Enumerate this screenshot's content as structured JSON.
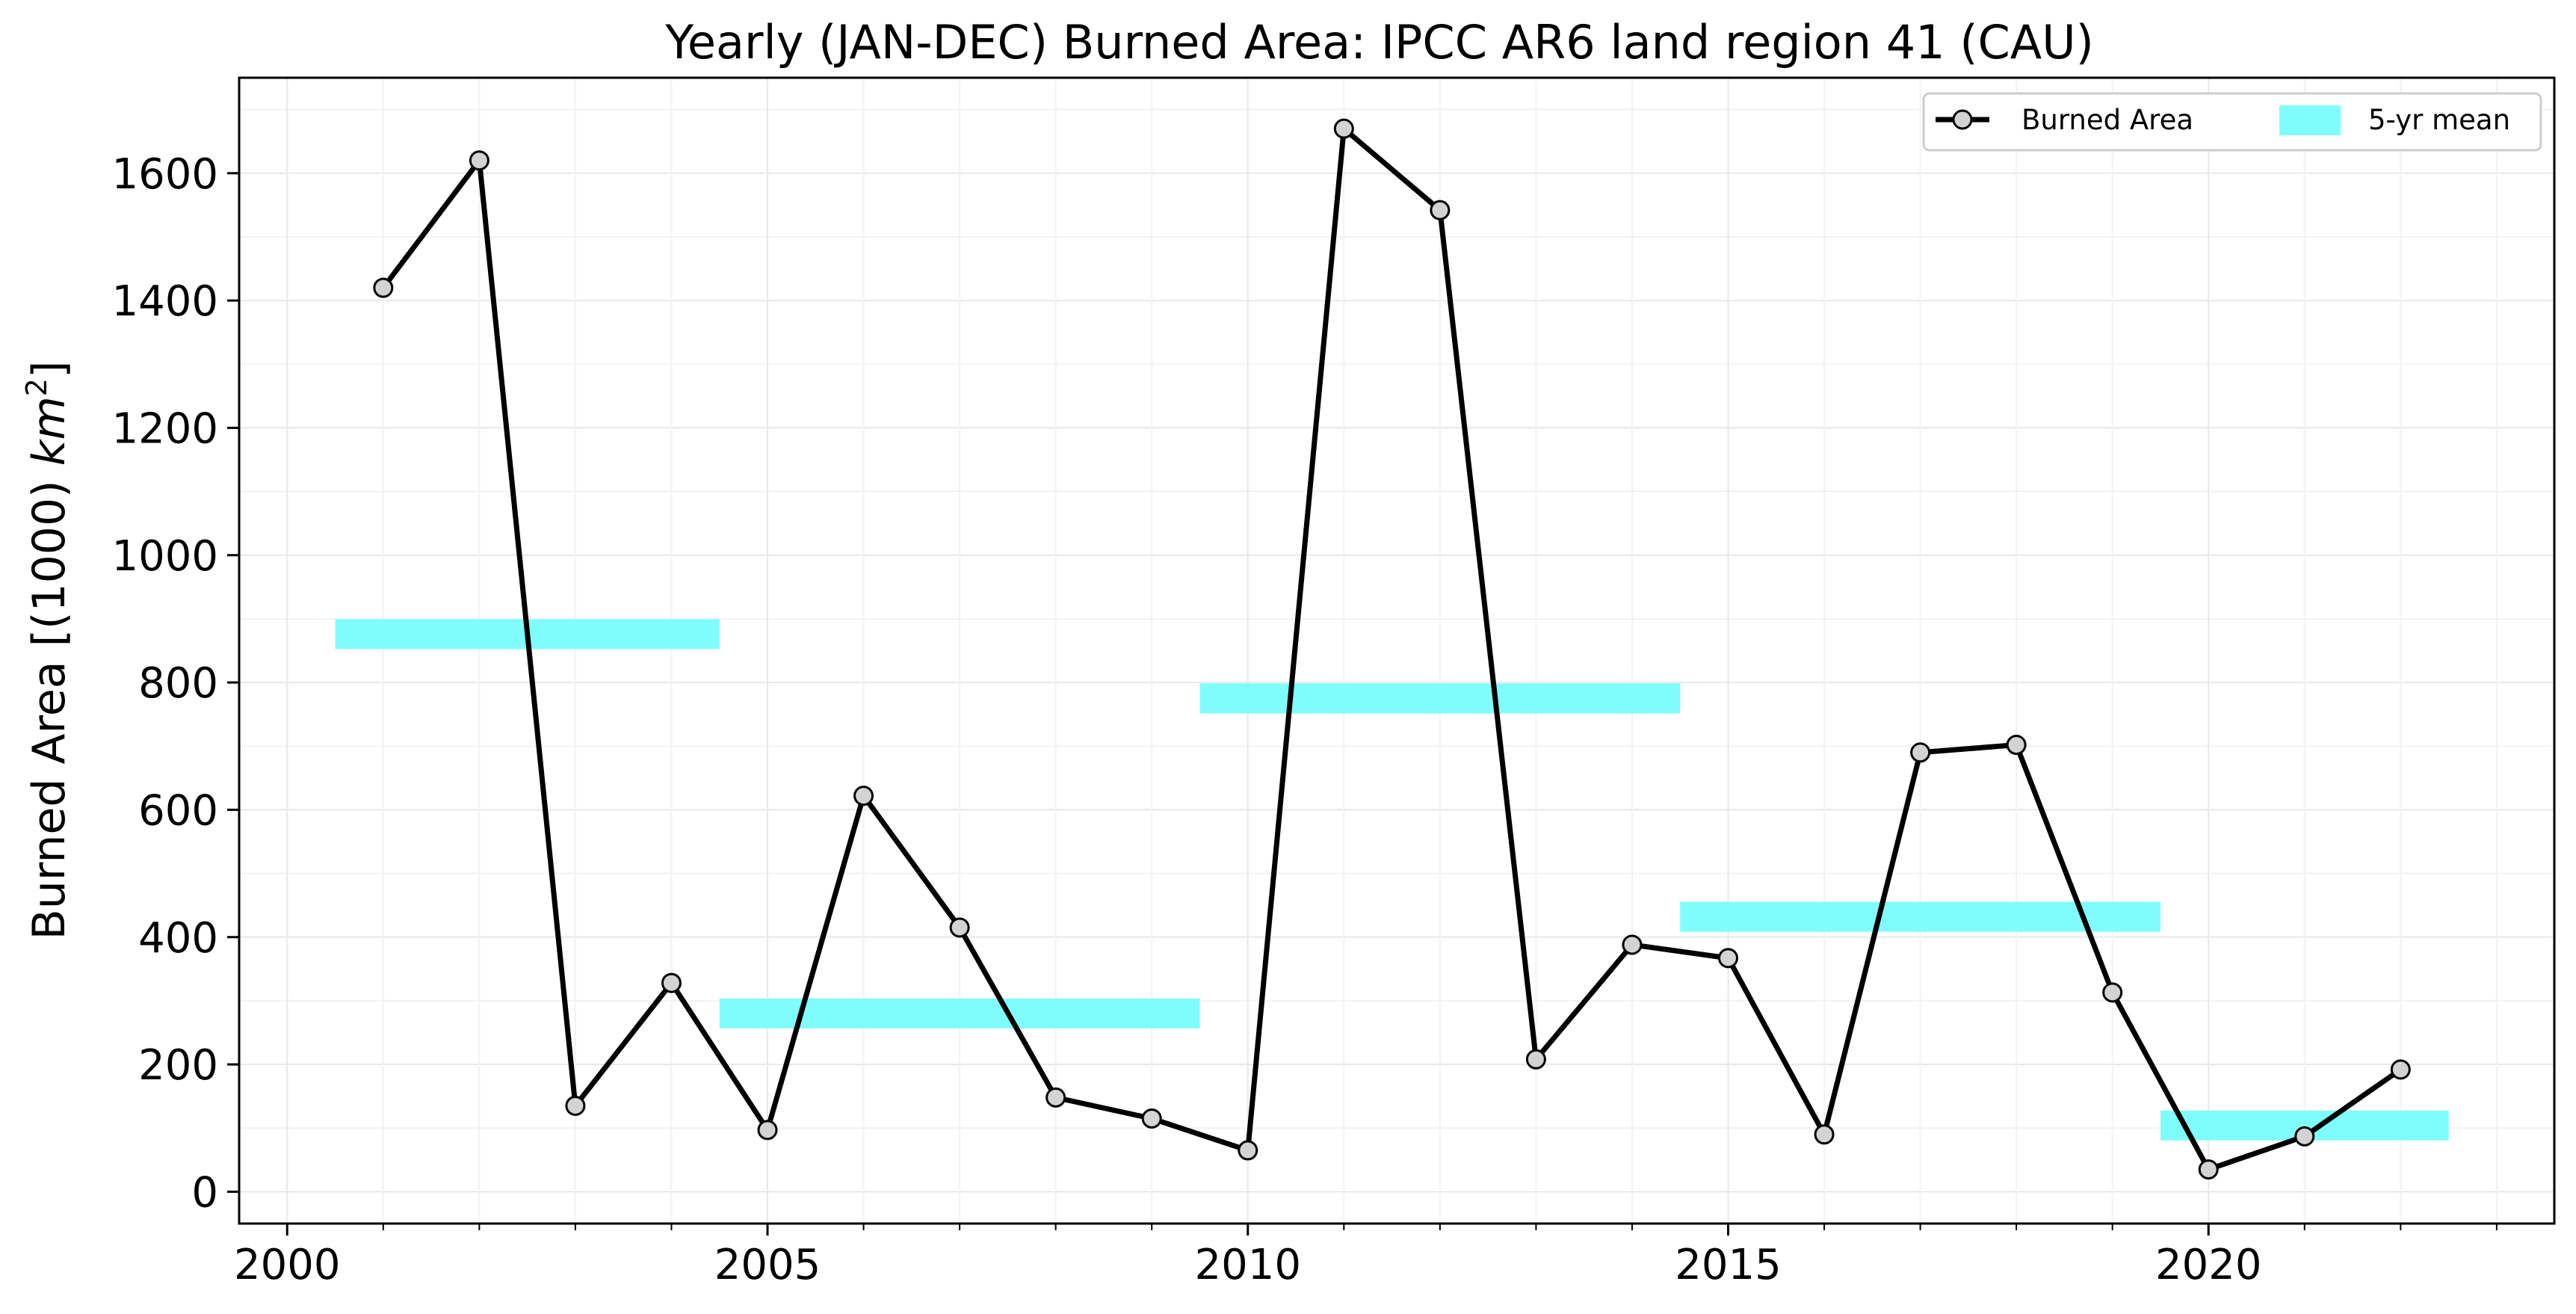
{
  "chart_data": {
    "type": "line",
    "title": "Yearly (JAN-DEC) Burned Area: IPCC AR6 land region 41 (CAU)",
    "xlabel": "",
    "ylabel": "Burned Area [(1000) km²]",
    "ylabel_parts": {
      "prefix": "Burned Area [(1000) ",
      "unit": "km",
      "exponent": "2",
      "suffix": "]"
    },
    "xlim": [
      1999.5,
      2023.6
    ],
    "ylim": [
      -50,
      1750
    ],
    "x_ticks": [
      2000,
      2005,
      2010,
      2015,
      2020
    ],
    "x_tick_labels": [
      "2000",
      "2005",
      "2010",
      "2015",
      "2020"
    ],
    "y_ticks": [
      0,
      200,
      400,
      600,
      800,
      1000,
      1200,
      1400,
      1600
    ],
    "y_tick_labels": [
      "0",
      "200",
      "400",
      "600",
      "800",
      "1000",
      "1200",
      "1400",
      "1600"
    ],
    "grid": true,
    "legend_position": "top-right",
    "series": [
      {
        "name": "Burned Area",
        "kind": "line",
        "color": "#000000",
        "marker_fill": "#d3d3d3",
        "x": [
          2001,
          2002,
          2003,
          2004,
          2005,
          2006,
          2007,
          2008,
          2009,
          2010,
          2011,
          2012,
          2013,
          2014,
          2015,
          2016,
          2017,
          2018,
          2019,
          2020,
          2021,
          2022
        ],
        "values": [
          1420,
          1620,
          135,
          328,
          97,
          622,
          415,
          148,
          115,
          65,
          1670,
          1542,
          208,
          388,
          367,
          90,
          690,
          702,
          313,
          35,
          87,
          192
        ]
      },
      {
        "name": "5-yr mean",
        "kind": "band",
        "color": "#7ffdfd",
        "segments": [
          {
            "x_start": 2000.5,
            "x_end": 2004.5,
            "y": 876
          },
          {
            "x_start": 2004.5,
            "x_end": 2009.5,
            "y": 280
          },
          {
            "x_start": 2009.5,
            "x_end": 2014.5,
            "y": 775
          },
          {
            "x_start": 2014.5,
            "x_end": 2019.5,
            "y": 432
          },
          {
            "x_start": 2019.5,
            "x_end": 2022.5,
            "y": 104
          }
        ]
      }
    ]
  }
}
